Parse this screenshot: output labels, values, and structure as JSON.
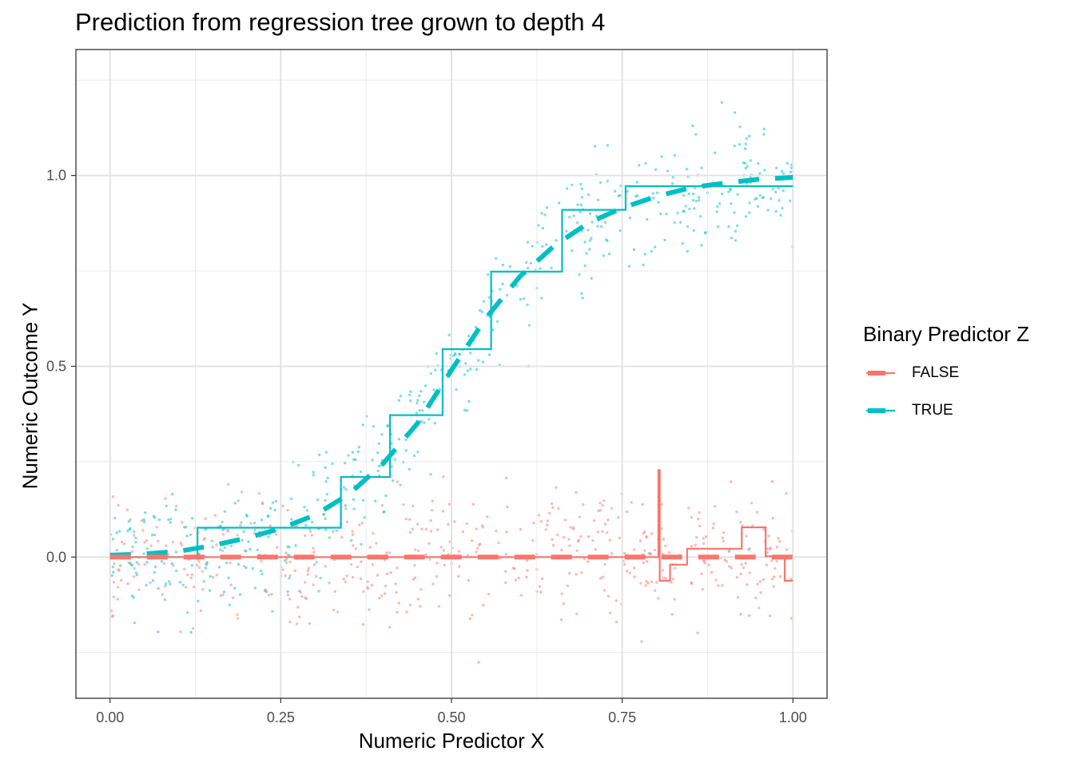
{
  "chart_data": {
    "type": "line",
    "title": "Prediction from regression tree grown to depth 4",
    "xlabel": "Numeric Predictor X",
    "ylabel": "Numeric Outcome Y",
    "xlim": [
      -0.05,
      1.05
    ],
    "ylim": [
      -0.37,
      1.33
    ],
    "x_ticks": [
      0.0,
      0.25,
      0.5,
      0.75,
      1.0
    ],
    "x_tick_labels": [
      "0.00",
      "0.25",
      "0.50",
      "0.75",
      "1.00"
    ],
    "y_ticks": [
      0.0,
      0.5,
      1.0
    ],
    "y_tick_labels": [
      "0.0",
      "0.5",
      "1.0"
    ],
    "grid": true,
    "legend": {
      "title": "Binary Predictor Z",
      "position": "right",
      "entries": [
        {
          "label": "FALSE",
          "color": "#F8766D"
        },
        {
          "label": "TRUE",
          "color": "#00BFC4"
        }
      ]
    },
    "series": [
      {
        "name": "TRUE",
        "color": "#00BFC4",
        "tree_prediction_steps": [
          [
            0.0,
            0.0
          ],
          [
            0.128,
            0.0
          ],
          [
            0.128,
            0.077
          ],
          [
            0.338,
            0.077
          ],
          [
            0.338,
            0.21
          ],
          [
            0.41,
            0.21
          ],
          [
            0.41,
            0.372
          ],
          [
            0.487,
            0.372
          ],
          [
            0.487,
            0.545
          ],
          [
            0.558,
            0.545
          ],
          [
            0.558,
            0.748
          ],
          [
            0.662,
            0.748
          ],
          [
            0.662,
            0.91
          ],
          [
            0.755,
            0.91
          ],
          [
            0.755,
            0.972
          ],
          [
            1.0,
            0.972
          ]
        ],
        "true_mean_curve": [
          [
            0.0,
            0.005
          ],
          [
            0.05,
            0.008
          ],
          [
            0.1,
            0.015
          ],
          [
            0.15,
            0.03
          ],
          [
            0.2,
            0.05
          ],
          [
            0.25,
            0.075
          ],
          [
            0.3,
            0.11
          ],
          [
            0.35,
            0.165
          ],
          [
            0.4,
            0.245
          ],
          [
            0.45,
            0.35
          ],
          [
            0.5,
            0.49
          ],
          [
            0.55,
            0.625
          ],
          [
            0.6,
            0.735
          ],
          [
            0.65,
            0.815
          ],
          [
            0.7,
            0.875
          ],
          [
            0.75,
            0.915
          ],
          [
            0.8,
            0.945
          ],
          [
            0.85,
            0.968
          ],
          [
            0.9,
            0.98
          ],
          [
            0.95,
            0.99
          ],
          [
            1.0,
            0.995
          ]
        ]
      },
      {
        "name": "FALSE",
        "color": "#F8766D",
        "tree_prediction_steps": [
          [
            0.0,
            0.0
          ],
          [
            0.803,
            0.0
          ],
          [
            0.803,
            0.228
          ],
          [
            0.805,
            0.228
          ],
          [
            0.805,
            -0.062
          ],
          [
            0.82,
            -0.062
          ],
          [
            0.82,
            -0.02
          ],
          [
            0.845,
            -0.02
          ],
          [
            0.845,
            0.022
          ],
          [
            0.925,
            0.022
          ],
          [
            0.925,
            0.078
          ],
          [
            0.96,
            0.078
          ],
          [
            0.96,
            0.002
          ],
          [
            0.988,
            0.002
          ],
          [
            0.988,
            -0.062
          ],
          [
            1.0,
            -0.062
          ]
        ],
        "true_mean_curve": [
          [
            0.0,
            0.0
          ],
          [
            1.0,
            0.0
          ]
        ]
      }
    ]
  }
}
